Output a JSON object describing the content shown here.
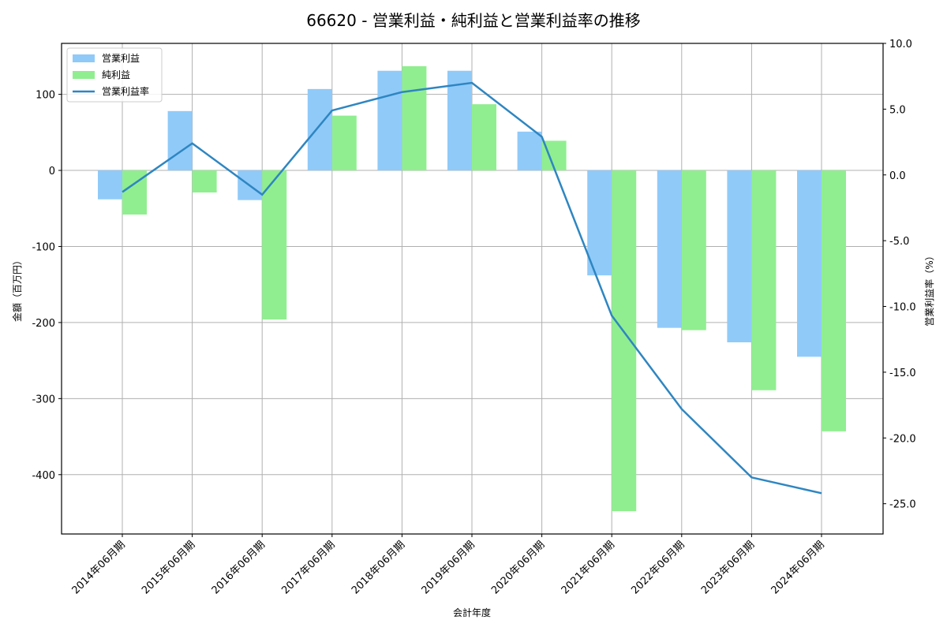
{
  "chart_data": {
    "type": "bar+line",
    "title": "66620 - 営業利益・純利益と営業利益率の推移",
    "xlabel": "会計年度",
    "ylabel": "金額（百万円）",
    "y2label": "営業利益率（%）",
    "categories": [
      "2014年06月期",
      "2015年06月期",
      "2016年06月期",
      "2017年06月期",
      "2018年06月期",
      "2019年06月期",
      "2020年06月期",
      "2021年06月期",
      "2022年06月期",
      "2023年06月期",
      "2024年06月期"
    ],
    "series": [
      {
        "name": "営業利益",
        "type": "bar",
        "axis": "left",
        "color": "#90caf9",
        "values": [
          -38,
          78,
          -39,
          107,
          131,
          131,
          51,
          -138,
          -207,
          -226,
          -245
        ]
      },
      {
        "name": "純利益",
        "type": "bar",
        "axis": "left",
        "color": "#90ee90",
        "values": [
          -58,
          -29,
          -196,
          72,
          137,
          87,
          39,
          -448,
          -210,
          -289,
          -343
        ]
      },
      {
        "name": "営業利益率",
        "type": "line",
        "axis": "right",
        "color": "#2e86c1",
        "values": [
          -1.3,
          2.4,
          -1.5,
          4.9,
          6.3,
          7.0,
          2.9,
          -10.7,
          -17.8,
          -23.0,
          -24.2
        ]
      }
    ],
    "ylim": [
      -478,
      167
    ],
    "y2lim": [
      -27.3,
      10.0
    ],
    "yticks": [
      100,
      0,
      -100,
      -200,
      -300,
      -400
    ],
    "y2ticks": [
      "10.0",
      "5.0",
      "0.0",
      "-5.0",
      "-10.0",
      "-15.0",
      "-20.0",
      "-25.0"
    ],
    "grid": true,
    "legend_position": "upper left"
  }
}
